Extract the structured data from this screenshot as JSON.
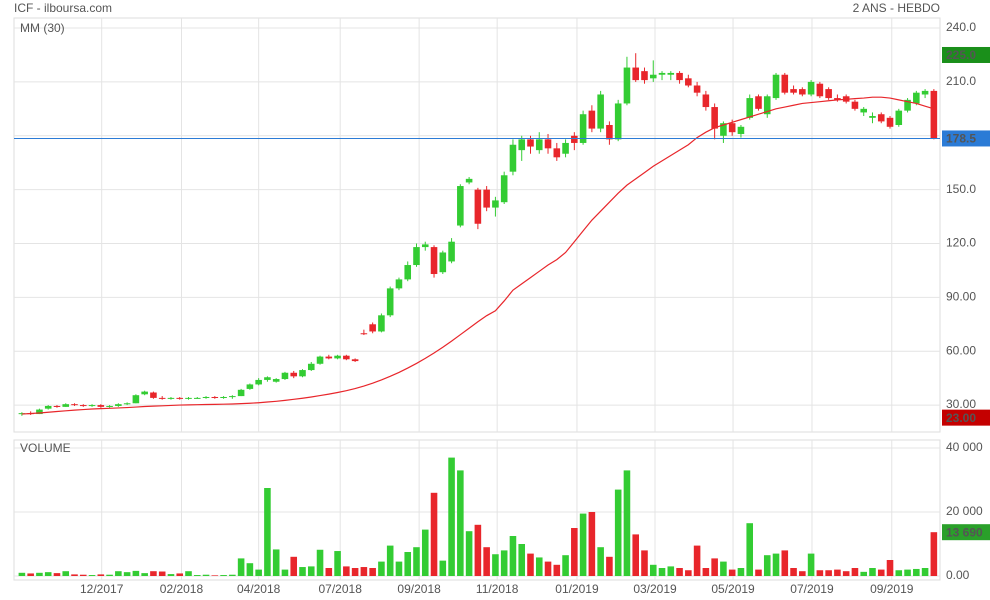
{
  "chart_data": [
    {
      "type": "candlestick",
      "title": "ICF - ilboursa.com",
      "subtitle": "2 ANS - HEBDO",
      "up_color": "#33cc33",
      "down_color": "#e8262b",
      "grid": true,
      "xlim": [
        -0.9,
        104.7
      ],
      "xticks": [
        {
          "value": 9.1,
          "label": "12/2017"
        },
        {
          "value": 18.2,
          "label": "02/2018"
        },
        {
          "value": 27.0,
          "label": "04/2018"
        },
        {
          "value": 36.3,
          "label": "07/2018"
        },
        {
          "value": 45.3,
          "label": "09/2018"
        },
        {
          "value": 54.2,
          "label": "11/2018"
        },
        {
          "value": 63.3,
          "label": "01/2019"
        },
        {
          "value": 72.2,
          "label": "03/2019"
        },
        {
          "value": 81.1,
          "label": "05/2019"
        },
        {
          "value": 90.1,
          "label": "07/2019"
        },
        {
          "value": 99.2,
          "label": "09/2019"
        }
      ],
      "ylim": [
        15,
        245.6
      ],
      "yticks": [
        {
          "value": 30,
          "label": "30.00"
        },
        {
          "value": 60,
          "label": "60.00"
        },
        {
          "value": 90,
          "label": "90.00"
        },
        {
          "value": 120,
          "label": "120.0"
        },
        {
          "value": 150,
          "label": "150.0"
        },
        {
          "value": 180,
          "label": "180.0"
        },
        {
          "value": 210,
          "label": "210.0"
        },
        {
          "value": 240,
          "label": "240.0"
        }
      ],
      "open": [
        25,
        25.5,
        25,
        28,
        29.5,
        29,
        30.5,
        30,
        29.5,
        30,
        29,
        29.5,
        30.5,
        31,
        36,
        37,
        34,
        33.5,
        34,
        33.5,
        34,
        34,
        34.5,
        34,
        34.5,
        35,
        39,
        41.5,
        44,
        43,
        44.5,
        48,
        46,
        49.5,
        53,
        57,
        56,
        57.5,
        55.5,
        70,
        75,
        71,
        80,
        95,
        100,
        108,
        118,
        118,
        104,
        110,
        130,
        154,
        150,
        150,
        140,
        143,
        160,
        172,
        178,
        172,
        178,
        173,
        170,
        180,
        176,
        194,
        184,
        186,
        178,
        198,
        218,
        216,
        212,
        214,
        214,
        215,
        212,
        208,
        203,
        196,
        180,
        187,
        181,
        190,
        202,
        192,
        201,
        214,
        206,
        206,
        203,
        209,
        206,
        201,
        202,
        199,
        193,
        190,
        192,
        190,
        186,
        194,
        198,
        203,
        205
      ],
      "high": [
        26,
        26.5,
        28,
        30,
        30,
        31,
        31,
        30.5,
        30.5,
        30.5,
        30,
        31,
        31.5,
        36,
        38,
        37.5,
        35,
        34.5,
        34.5,
        34.5,
        34.5,
        35,
        35,
        35,
        35.5,
        39,
        42,
        45,
        46,
        45,
        48.5,
        49,
        50,
        54,
        57.5,
        58,
        58,
        58,
        56,
        72,
        76,
        81,
        96,
        101,
        110,
        120,
        121,
        119,
        116,
        123,
        153,
        157,
        151,
        152,
        146,
        160,
        178,
        180,
        180,
        182,
        181,
        176,
        178,
        182,
        194,
        197,
        205,
        188,
        200,
        224,
        226,
        218,
        222,
        216,
        216,
        216,
        214,
        210,
        205,
        198,
        188,
        189,
        186,
        203,
        203,
        203,
        215,
        215,
        208,
        207,
        211,
        210,
        207,
        203,
        203,
        200,
        196,
        193,
        193,
        191,
        195,
        201,
        205,
        206,
        206
      ],
      "low": [
        24,
        24.5,
        25,
        27.5,
        28.5,
        29,
        29.5,
        29,
        29,
        28.5,
        28.5,
        29,
        30,
        31,
        35.5,
        33.5,
        33,
        33,
        33,
        33,
        33.5,
        33.5,
        33.5,
        33.5,
        33.5,
        35,
        38.5,
        41,
        43,
        42.5,
        44,
        45,
        45.5,
        49,
        52.5,
        55.5,
        55.5,
        55,
        54,
        69,
        70,
        70.5,
        79,
        94,
        99,
        107,
        116,
        101,
        103,
        109,
        129,
        153,
        128,
        138,
        135,
        142,
        158,
        166,
        170,
        170,
        170,
        166,
        168,
        172,
        175,
        182,
        182,
        175,
        177,
        197,
        210,
        209,
        210,
        211,
        211,
        209,
        207,
        202,
        194,
        178,
        176,
        180,
        179,
        189,
        194,
        190,
        200,
        203,
        203,
        202,
        202,
        201,
        200,
        199,
        198,
        194,
        191,
        187,
        187,
        184,
        185,
        193,
        197,
        201,
        178
      ],
      "close": [
        25.5,
        25,
        27.5,
        29.5,
        29,
        30.5,
        30,
        29.5,
        30,
        29,
        29.5,
        30.5,
        31,
        35.5,
        37.5,
        34,
        33.5,
        34,
        33.5,
        34,
        34,
        34.5,
        34,
        34.5,
        35,
        38.5,
        41.5,
        44,
        45.5,
        44.5,
        48,
        46,
        49.5,
        53,
        57,
        56,
        57.5,
        55.5,
        54.5,
        69.5,
        71,
        80,
        95,
        100,
        108,
        118,
        119.5,
        103,
        115,
        121,
        152,
        156,
        131,
        140,
        144,
        158,
        175,
        178,
        174,
        178,
        173,
        168,
        176,
        176,
        192,
        184,
        203,
        178,
        198,
        218,
        211,
        211,
        214,
        215,
        215,
        211,
        208,
        204,
        196,
        184,
        187,
        182,
        185,
        201,
        195,
        202,
        214,
        204,
        204,
        203,
        210,
        202,
        201,
        200,
        199,
        195,
        195,
        191,
        188,
        185,
        194,
        200,
        204,
        205,
        178.5
      ],
      "moving_average": {
        "name": "MM (30)",
        "color": "#e8262b",
        "values": [
          25,
          25.3,
          25.6,
          26,
          26.4,
          26.8,
          27.2,
          27.5,
          27.8,
          28,
          28.2,
          28.4,
          28.6,
          28.9,
          29.2,
          29.4,
          29.6,
          29.8,
          30,
          30.1,
          30.2,
          30.3,
          30.4,
          30.5,
          30.6,
          30.8,
          31,
          31.3,
          31.7,
          32.1,
          32.6,
          33.2,
          33.8,
          34.5,
          35.3,
          36.1,
          37,
          38,
          39.2,
          40.6,
          42.2,
          44,
          46,
          48.2,
          50.6,
          53.2,
          56,
          59,
          62.2,
          65.6,
          69.2,
          72.8,
          76.4,
          79.8,
          82.5,
          88,
          94,
          97.5,
          101,
          104.5,
          108,
          111,
          115,
          121,
          127,
          133,
          138,
          143,
          148,
          152.5,
          156,
          159.5,
          163,
          166,
          169,
          172,
          175,
          179,
          182,
          184.5,
          186,
          187.5,
          189,
          190.5,
          192,
          193.5,
          195,
          196,
          197,
          198,
          198.5,
          199,
          199.5,
          200,
          200.3,
          200.7,
          201,
          201.5,
          201.5,
          201,
          200,
          199,
          198,
          196.5,
          195
        ]
      },
      "badges": [
        {
          "value": 225,
          "label": "225.0",
          "color": "#1a8f1a"
        },
        {
          "value": 178.5,
          "label": "178.5",
          "color": "#2b7bd6",
          "line": true
        },
        {
          "value": 23,
          "label": "23.00",
          "color": "#c40000"
        }
      ]
    },
    {
      "type": "bar",
      "title": "VOLUME",
      "title_color": "#33aa33",
      "ylim": [
        -1250,
        42500
      ],
      "yticks": [
        {
          "value": 0,
          "label": "0.00"
        },
        {
          "value": 20000,
          "label": "20 000"
        },
        {
          "value": 40000,
          "label": "40 000"
        }
      ],
      "values": [
        1000,
        800,
        1000,
        1200,
        900,
        1500,
        500,
        400,
        300,
        500,
        400,
        1500,
        1200,
        1600,
        900,
        1500,
        1400,
        600,
        800,
        1500,
        300,
        400,
        200,
        300,
        400,
        5500,
        4000,
        2000,
        27500,
        8300,
        2000,
        6000,
        2800,
        3000,
        8200,
        2500,
        7800,
        3000,
        2500,
        2800,
        2500,
        4500,
        9500,
        4500,
        7500,
        9000,
        14500,
        26000,
        4800,
        37000,
        33000,
        14000,
        16000,
        9000,
        6800,
        8000,
        12500,
        10000,
        7000,
        5800,
        4500,
        3500,
        6500,
        15000,
        19500,
        20000,
        9000,
        6000,
        27000,
        33000,
        13000,
        8000,
        3500,
        2500,
        3000,
        2500,
        1800,
        9500,
        2500,
        5500,
        4500,
        2000,
        2500,
        16500,
        2000,
        6500,
        7000,
        8000,
        2500,
        1500,
        7000,
        1800,
        1800,
        2000,
        1500,
        2500,
        1300,
        2500,
        2000,
        5000,
        1800,
        2000,
        2200,
        2500,
        13690
      ],
      "badges": [
        {
          "value": 13690,
          "label": "13 690",
          "color": "#2aa02a"
        }
      ]
    }
  ]
}
